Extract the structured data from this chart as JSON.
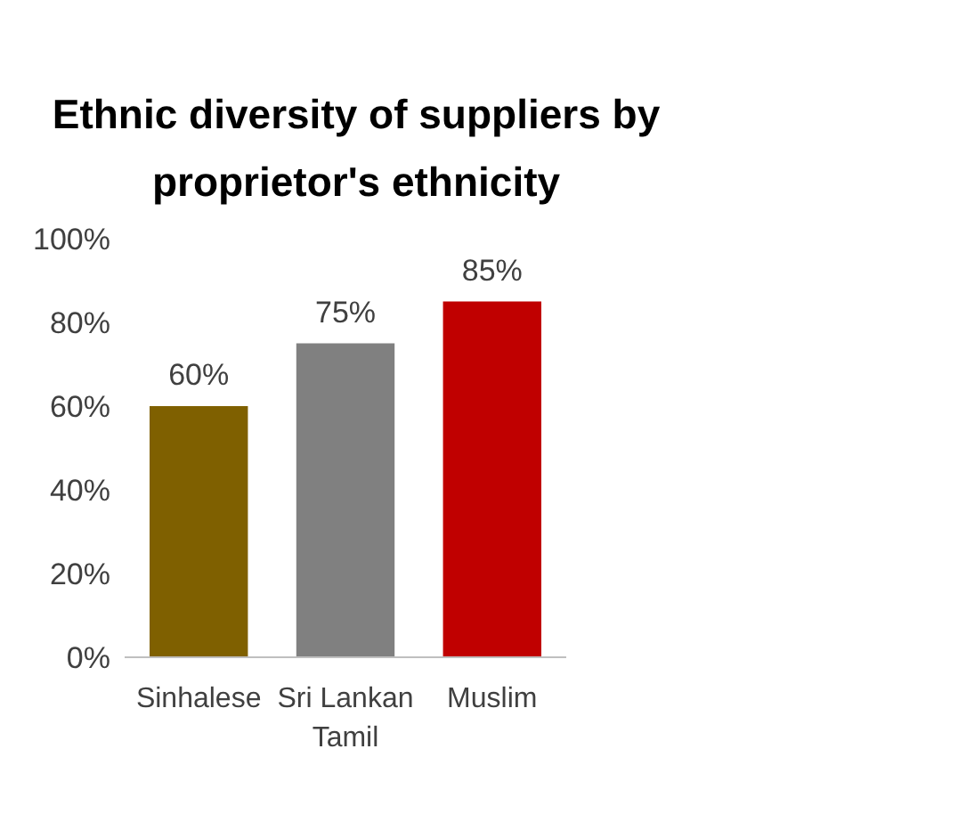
{
  "chart_data": {
    "type": "bar",
    "title": "Ethnic diversity of suppliers by proprietor's ethnicity",
    "categories": [
      "Sinhalese",
      "Sri Lankan Tamil",
      "Muslim"
    ],
    "values": [
      60,
      75,
      85
    ],
    "colors": [
      "#7f6000",
      "#808080",
      "#c00000"
    ],
    "value_labels": [
      "60%",
      "75%",
      "85%"
    ],
    "ylim": [
      0,
      100
    ],
    "yticks": [
      {
        "value": 0,
        "label": "0%"
      },
      {
        "value": 20,
        "label": "20%"
      },
      {
        "value": 40,
        "label": "40%"
      },
      {
        "value": 60,
        "label": "60%"
      },
      {
        "value": 80,
        "label": "80%"
      },
      {
        "value": 100,
        "label": "100%"
      }
    ],
    "grid": false
  }
}
